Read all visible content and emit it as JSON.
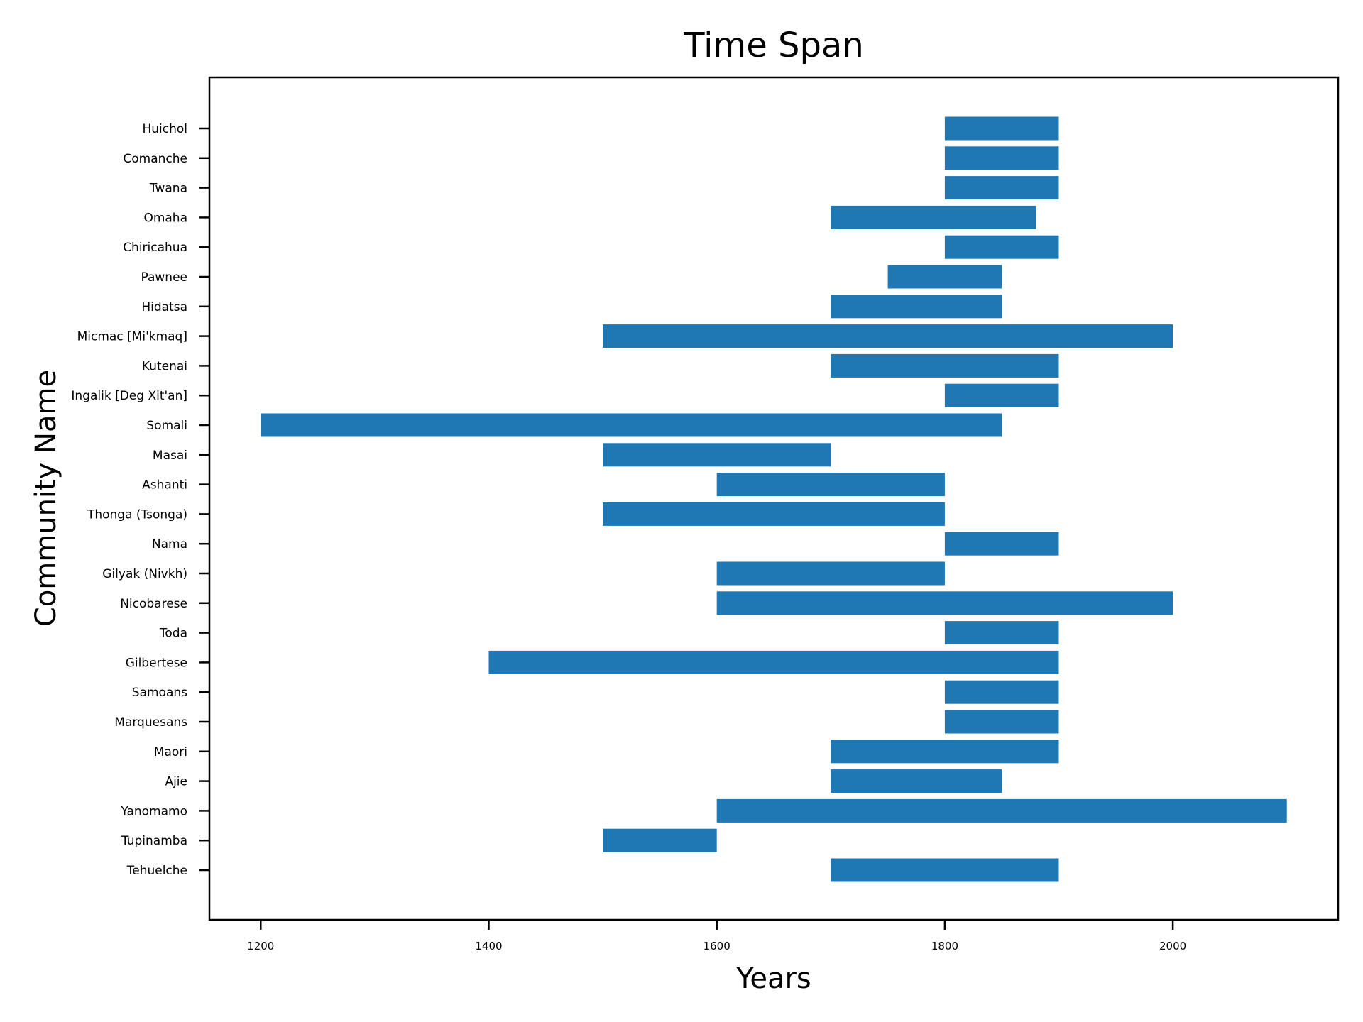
{
  "chart_data": {
    "type": "bar",
    "orientation": "horizontal",
    "title": "Time Span",
    "xlabel": "Years",
    "ylabel": "Community Name",
    "xlim": [
      1155,
      2145
    ],
    "xticks": [
      1200,
      1400,
      1600,
      1800,
      2000
    ],
    "grid": false,
    "bar_color": "#1f77b4",
    "categories": [
      "Tehuelche",
      "Tupinamba",
      "Yanomamo",
      "Ajie",
      "Maori",
      "Marquesans",
      "Samoans ",
      "Gilbertese",
      "Toda",
      "Nicobarese",
      "Gilyak (Nivkh)",
      "Nama",
      "Thonga (Tsonga)",
      "Ashanti",
      "Masai",
      "Somali",
      "Ingalik [Deg Xit'an]",
      "Kutenai",
      "Micmac [Mi'kmaq]",
      "Hidatsa",
      "Pawnee",
      "Chiricahua",
      "Omaha",
      "Twana",
      "Comanche",
      "Huichol"
    ],
    "start": [
      1700,
      1500,
      1600,
      1700,
      1700,
      1800,
      1800,
      1400,
      1800,
      1600,
      1600,
      1800,
      1500,
      1600,
      1500,
      1200,
      1800,
      1700,
      1500,
      1700,
      1750,
      1800,
      1700,
      1800,
      1800,
      1800
    ],
    "end": [
      1900,
      1600,
      2100,
      1850,
      1900,
      1900,
      1900,
      1900,
      1900,
      2000,
      1800,
      1900,
      1800,
      1800,
      1700,
      1850,
      1900,
      1900,
      2000,
      1850,
      1850,
      1900,
      1880,
      1900,
      1900,
      1900
    ]
  }
}
